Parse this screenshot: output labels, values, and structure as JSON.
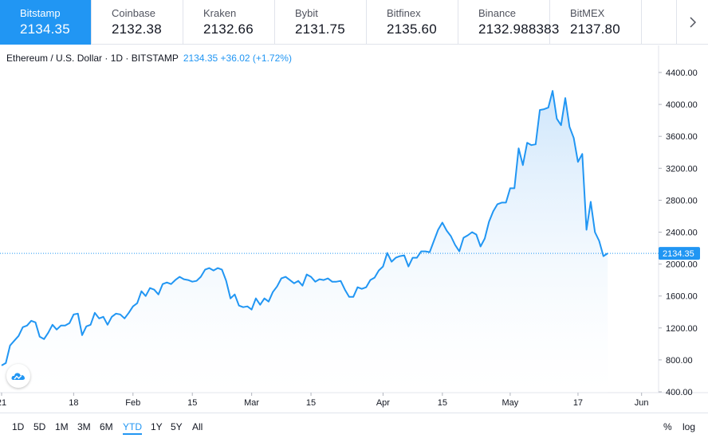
{
  "exchanges": [
    {
      "name": "Bitstamp",
      "price": "2134.35",
      "active": true
    },
    {
      "name": "Coinbase",
      "price": "2132.38"
    },
    {
      "name": "Kraken",
      "price": "2132.66"
    },
    {
      "name": "Bybit",
      "price": "2131.75"
    },
    {
      "name": "Bitfinex",
      "price": "2135.60"
    },
    {
      "name": "Binance",
      "price": "2132.988383"
    },
    {
      "name": "BitMEX",
      "price": "2137.80"
    }
  ],
  "more_icon": "chevron-right-icon",
  "legend": {
    "symbol": "Ethereum / U.S. Dollar · 1D · BITSTAMP",
    "quote": "2134.35 +36.02 (+1.72%)"
  },
  "price_label": "2134.35",
  "logo_icon": "tradingview-logo-icon",
  "ranges": [
    "1D",
    "5D",
    "1M",
    "3M",
    "6M",
    "YTD",
    "1Y",
    "5Y",
    "All"
  ],
  "active_range": "YTD",
  "options": {
    "percent": "%",
    "log": "log"
  },
  "colors": {
    "line": "#2196f3",
    "fill_top": "#c9e3fb",
    "fill_bottom": "#ffffff",
    "accent": "#2196f3"
  },
  "chart_data": {
    "type": "area",
    "ylim": [
      400,
      4400
    ],
    "y_ticks": [
      400,
      800,
      1200,
      1600,
      2000,
      2400,
      2800,
      3200,
      3600,
      4000,
      4400
    ],
    "y_tick_labels": [
      "400.00",
      "800.00",
      "1200.00",
      "1600.00",
      "2000.00",
      "2400.00",
      "2800.00",
      "3200.00",
      "3600.00",
      "4000.00",
      "4400.00"
    ],
    "x_start": "2021-01-01",
    "x_end": "2021-06-02",
    "x_ticks": [
      {
        "date": "2021-01-01",
        "label": "21"
      },
      {
        "date": "2021-01-18",
        "label": "18"
      },
      {
        "date": "2021-02-01",
        "label": "Feb"
      },
      {
        "date": "2021-02-15",
        "label": "15"
      },
      {
        "date": "2021-03-01",
        "label": "Mar"
      },
      {
        "date": "2021-03-15",
        "label": "15"
      },
      {
        "date": "2021-04-01",
        "label": "Apr"
      },
      {
        "date": "2021-04-15",
        "label": "15"
      },
      {
        "date": "2021-05-01",
        "label": "May"
      },
      {
        "date": "2021-05-17",
        "label": "17"
      },
      {
        "date": "2021-06-01",
        "label": "Jun"
      }
    ],
    "current_value": 2134.35,
    "x": [
      "2021-01-01",
      "2021-01-02",
      "2021-01-03",
      "2021-01-04",
      "2021-01-05",
      "2021-01-06",
      "2021-01-07",
      "2021-01-08",
      "2021-01-09",
      "2021-01-10",
      "2021-01-11",
      "2021-01-12",
      "2021-01-13",
      "2021-01-14",
      "2021-01-15",
      "2021-01-16",
      "2021-01-17",
      "2021-01-18",
      "2021-01-19",
      "2021-01-20",
      "2021-01-21",
      "2021-01-22",
      "2021-01-23",
      "2021-01-24",
      "2021-01-25",
      "2021-01-26",
      "2021-01-27",
      "2021-01-28",
      "2021-01-29",
      "2021-01-30",
      "2021-01-31",
      "2021-02-01",
      "2021-02-02",
      "2021-02-03",
      "2021-02-04",
      "2021-02-05",
      "2021-02-06",
      "2021-02-07",
      "2021-02-08",
      "2021-02-09",
      "2021-02-10",
      "2021-02-11",
      "2021-02-12",
      "2021-02-13",
      "2021-02-14",
      "2021-02-15",
      "2021-02-16",
      "2021-02-17",
      "2021-02-18",
      "2021-02-19",
      "2021-02-20",
      "2021-02-21",
      "2021-02-22",
      "2021-02-23",
      "2021-02-24",
      "2021-02-25",
      "2021-02-26",
      "2021-02-27",
      "2021-02-28",
      "2021-03-01",
      "2021-03-02",
      "2021-03-03",
      "2021-03-04",
      "2021-03-05",
      "2021-03-06",
      "2021-03-07",
      "2021-03-08",
      "2021-03-09",
      "2021-03-10",
      "2021-03-11",
      "2021-03-12",
      "2021-03-13",
      "2021-03-14",
      "2021-03-15",
      "2021-03-16",
      "2021-03-17",
      "2021-03-18",
      "2021-03-19",
      "2021-03-20",
      "2021-03-21",
      "2021-03-22",
      "2021-03-23",
      "2021-03-24",
      "2021-03-25",
      "2021-03-26",
      "2021-03-27",
      "2021-03-28",
      "2021-03-29",
      "2021-03-30",
      "2021-03-31",
      "2021-04-01",
      "2021-04-02",
      "2021-04-03",
      "2021-04-04",
      "2021-04-05",
      "2021-04-06",
      "2021-04-07",
      "2021-04-08",
      "2021-04-09",
      "2021-04-10",
      "2021-04-11",
      "2021-04-12",
      "2021-04-13",
      "2021-04-14",
      "2021-04-15",
      "2021-04-16",
      "2021-04-17",
      "2021-04-18",
      "2021-04-19",
      "2021-04-20",
      "2021-04-21",
      "2021-04-22",
      "2021-04-23",
      "2021-04-24",
      "2021-04-25",
      "2021-04-26",
      "2021-04-27",
      "2021-04-28",
      "2021-04-29",
      "2021-04-30",
      "2021-05-01",
      "2021-05-02",
      "2021-05-03",
      "2021-05-04",
      "2021-05-05",
      "2021-05-06",
      "2021-05-07",
      "2021-05-08",
      "2021-05-09",
      "2021-05-10",
      "2021-05-11",
      "2021-05-12",
      "2021-05-13",
      "2021-05-14",
      "2021-05-15",
      "2021-05-16",
      "2021-05-17",
      "2021-05-18",
      "2021-05-19",
      "2021-05-20",
      "2021-05-21",
      "2021-05-22",
      "2021-05-23",
      "2021-05-24"
    ],
    "y": [
      730,
      760,
      980,
      1040,
      1100,
      1210,
      1230,
      1290,
      1270,
      1090,
      1060,
      1140,
      1240,
      1180,
      1230,
      1230,
      1260,
      1370,
      1380,
      1110,
      1220,
      1240,
      1390,
      1320,
      1340,
      1240,
      1340,
      1380,
      1370,
      1320,
      1390,
      1470,
      1510,
      1660,
      1600,
      1700,
      1680,
      1620,
      1750,
      1770,
      1750,
      1800,
      1840,
      1810,
      1800,
      1780,
      1790,
      1840,
      1930,
      1950,
      1920,
      1950,
      1930,
      1790,
      1570,
      1620,
      1480,
      1460,
      1470,
      1430,
      1570,
      1490,
      1570,
      1530,
      1650,
      1720,
      1820,
      1840,
      1800,
      1760,
      1790,
      1730,
      1870,
      1840,
      1780,
      1810,
      1800,
      1820,
      1780,
      1780,
      1790,
      1680,
      1590,
      1590,
      1710,
      1690,
      1710,
      1800,
      1830,
      1920,
      1970,
      2140,
      2030,
      2080,
      2100,
      2110,
      1970,
      2080,
      2080,
      2160,
      2160,
      2150,
      2290,
      2430,
      2520,
      2420,
      2350,
      2240,
      2160,
      2330,
      2360,
      2400,
      2370,
      2220,
      2320,
      2530,
      2660,
      2750,
      2770,
      2770,
      2950,
      2950,
      3450,
      3240,
      3520,
      3490,
      3500,
      3930,
      3940,
      3960,
      4170,
      3820,
      3740,
      4080,
      3720,
      3580,
      3280,
      3380,
      2430,
      2780,
      2400,
      2290,
      2100,
      2134.35
    ]
  }
}
